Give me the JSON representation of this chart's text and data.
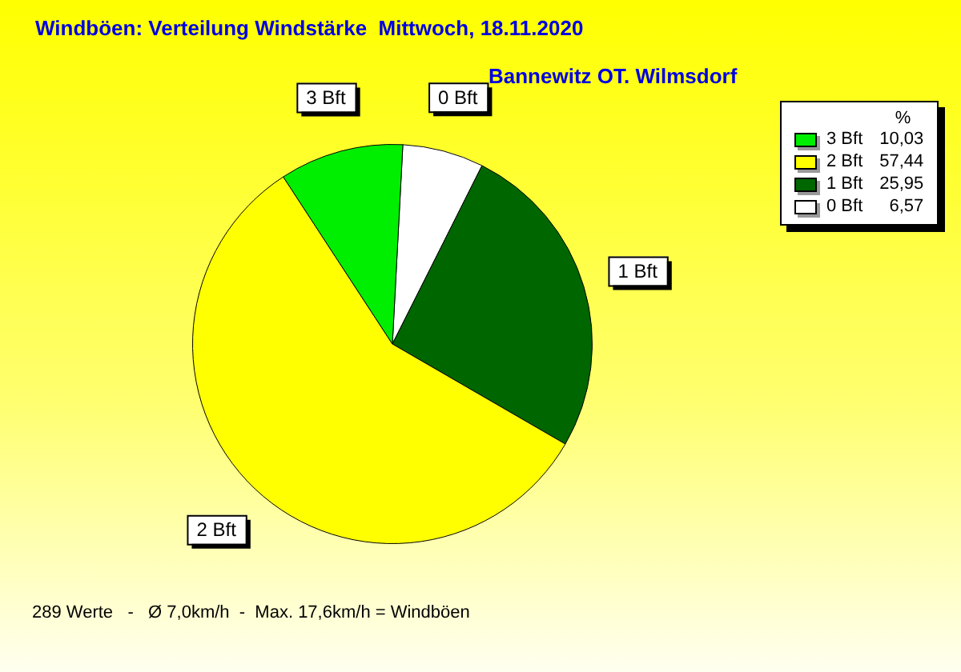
{
  "chart_data": {
    "type": "pie",
    "title": "Windböen: Verteilung Windstärke  Mittwoch, 18.11.2020",
    "subtitle": "Bannewitz OT. Wilmsdorf",
    "legend_title": "%",
    "categories": [
      "3 Bft",
      "2 Bft",
      "1 Bft",
      "0 Bft"
    ],
    "values": [
      10.03,
      57.44,
      25.95,
      6.57
    ],
    "colors": [
      "#00ee00",
      "#ffff00",
      "#006600",
      "#ffffff"
    ],
    "value_labels": [
      "10,03",
      "57,44",
      "25,95",
      "6,57"
    ],
    "legend": "top right",
    "annotations": [
      "289 Werte   -   Ø 7,0km/h  -  Max. 17,6km/h = Windböen"
    ]
  }
}
